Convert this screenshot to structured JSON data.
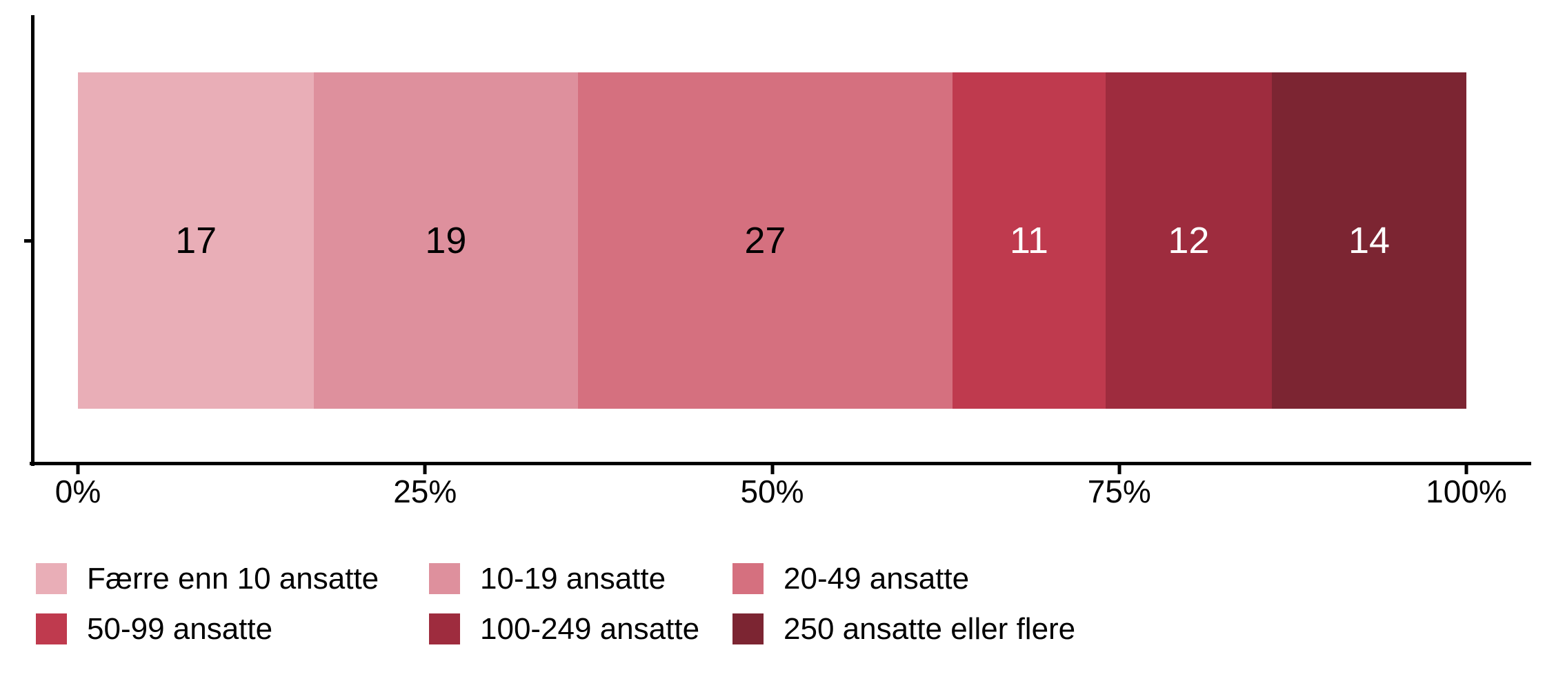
{
  "chart_data": {
    "type": "bar",
    "subtype": "stacked-horizontal",
    "title": "",
    "xlabel": "",
    "ylabel": "",
    "xlim": [
      0,
      100
    ],
    "x_tick_values": [
      0,
      25,
      50,
      75,
      100
    ],
    "x_tick_labels": [
      "0%",
      "25%",
      "50%",
      "75%",
      "100%"
    ],
    "categories": [
      ""
    ],
    "grid": "off",
    "background": "#ffffff",
    "axis_color": "#000000",
    "series": [
      {
        "name": "Færre enn 10 ansatte",
        "value": 17,
        "color": "#e9aeb7",
        "label_color": "#000000"
      },
      {
        "name": "10-19 ansatte",
        "value": 19,
        "color": "#de909d",
        "label_color": "#000000"
      },
      {
        "name": "20-49 ansatte",
        "value": 27,
        "color": "#d5707f",
        "label_color": "#000000"
      },
      {
        "name": "50-99 ansatte",
        "value": 11,
        "color": "#bf3a4e",
        "label_color": "#ffffff"
      },
      {
        "name": "100-249 ansatte",
        "value": 12,
        "color": "#9e2c3e",
        "label_color": "#ffffff"
      },
      {
        "name": "250 ansatte eller flere",
        "value": 14,
        "color": "#7c2532",
        "label_color": "#ffffff"
      }
    ],
    "legend": {
      "position": "bottom-left",
      "rows": [
        [
          0,
          1,
          2
        ],
        [
          3,
          4,
          5
        ]
      ]
    }
  }
}
